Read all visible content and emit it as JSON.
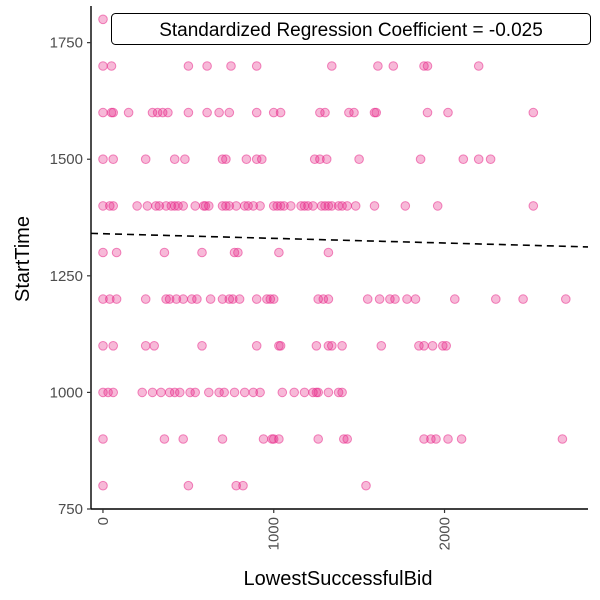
{
  "chart_data": {
    "type": "scatter",
    "title": "",
    "xlabel": "LowestSuccessfulBid",
    "ylabel": "StartTime",
    "xlim": [
      -70,
      2840
    ],
    "ylim": [
      750,
      1820
    ],
    "x_ticks": [
      0,
      1000,
      2000
    ],
    "x_tick_labels": [
      "0",
      "1000",
      "2000"
    ],
    "y_ticks": [
      750,
      1000,
      1250,
      1500,
      1750
    ],
    "y_tick_labels": [
      "750",
      "1000",
      "1250",
      "1500",
      "1750"
    ],
    "grid": false,
    "legend": "none",
    "annotation": "Standardized Regression Coefficient = -0.025",
    "regression_line": {
      "x": [
        -70,
        2840
      ],
      "y": [
        1341,
        1312
      ],
      "style": "dashed"
    },
    "point_color": "#e7298a",
    "point_fill_opacity": 0.33,
    "point_stroke_opacity": 0.55,
    "points": [
      [
        0,
        1800
      ],
      [
        0,
        1700
      ],
      [
        50,
        1700
      ],
      [
        500,
        1700
      ],
      [
        610,
        1700
      ],
      [
        750,
        1700
      ],
      [
        900,
        1700
      ],
      [
        1340,
        1700
      ],
      [
        1610,
        1700
      ],
      [
        1700,
        1700
      ],
      [
        1880,
        1700
      ],
      [
        1900,
        1700
      ],
      [
        2200,
        1700
      ],
      [
        0,
        1600
      ],
      [
        50,
        1600
      ],
      [
        60,
        1600
      ],
      [
        150,
        1600
      ],
      [
        290,
        1600
      ],
      [
        320,
        1600
      ],
      [
        350,
        1600
      ],
      [
        380,
        1600
      ],
      [
        500,
        1600
      ],
      [
        610,
        1600
      ],
      [
        680,
        1600
      ],
      [
        740,
        1600
      ],
      [
        900,
        1600
      ],
      [
        1000,
        1600
      ],
      [
        1040,
        1600
      ],
      [
        1270,
        1600
      ],
      [
        1300,
        1600
      ],
      [
        1440,
        1600
      ],
      [
        1470,
        1600
      ],
      [
        1590,
        1600
      ],
      [
        1600,
        1600
      ],
      [
        1900,
        1600
      ],
      [
        2020,
        1600
      ],
      [
        2520,
        1600
      ],
      [
        0,
        1500
      ],
      [
        60,
        1500
      ],
      [
        250,
        1500
      ],
      [
        420,
        1500
      ],
      [
        480,
        1500
      ],
      [
        700,
        1500
      ],
      [
        720,
        1500
      ],
      [
        840,
        1500
      ],
      [
        900,
        1500
      ],
      [
        930,
        1500
      ],
      [
        1240,
        1500
      ],
      [
        1270,
        1500
      ],
      [
        1310,
        1500
      ],
      [
        1500,
        1500
      ],
      [
        1860,
        1500
      ],
      [
        2110,
        1500
      ],
      [
        2200,
        1500
      ],
      [
        2270,
        1500
      ],
      [
        0,
        1400
      ],
      [
        40,
        1400
      ],
      [
        60,
        1400
      ],
      [
        200,
        1400
      ],
      [
        260,
        1400
      ],
      [
        310,
        1400
      ],
      [
        330,
        1400
      ],
      [
        370,
        1400
      ],
      [
        400,
        1400
      ],
      [
        420,
        1400
      ],
      [
        440,
        1400
      ],
      [
        470,
        1400
      ],
      [
        540,
        1400
      ],
      [
        590,
        1400
      ],
      [
        600,
        1400
      ],
      [
        620,
        1400
      ],
      [
        700,
        1400
      ],
      [
        720,
        1400
      ],
      [
        740,
        1400
      ],
      [
        780,
        1400
      ],
      [
        830,
        1400
      ],
      [
        850,
        1400
      ],
      [
        880,
        1400
      ],
      [
        920,
        1400
      ],
      [
        1000,
        1400
      ],
      [
        1020,
        1400
      ],
      [
        1040,
        1400
      ],
      [
        1060,
        1400
      ],
      [
        1100,
        1400
      ],
      [
        1160,
        1400
      ],
      [
        1180,
        1400
      ],
      [
        1200,
        1400
      ],
      [
        1230,
        1400
      ],
      [
        1280,
        1400
      ],
      [
        1300,
        1400
      ],
      [
        1320,
        1400
      ],
      [
        1340,
        1400
      ],
      [
        1380,
        1400
      ],
      [
        1400,
        1400
      ],
      [
        1430,
        1400
      ],
      [
        1480,
        1400
      ],
      [
        1590,
        1400
      ],
      [
        1770,
        1400
      ],
      [
        1960,
        1400
      ],
      [
        2520,
        1400
      ],
      [
        0,
        1300
      ],
      [
        80,
        1300
      ],
      [
        360,
        1300
      ],
      [
        580,
        1300
      ],
      [
        770,
        1300
      ],
      [
        790,
        1300
      ],
      [
        1030,
        1300
      ],
      [
        1320,
        1300
      ],
      [
        0,
        1200
      ],
      [
        40,
        1200
      ],
      [
        80,
        1200
      ],
      [
        250,
        1200
      ],
      [
        370,
        1200
      ],
      [
        390,
        1200
      ],
      [
        430,
        1200
      ],
      [
        470,
        1200
      ],
      [
        520,
        1200
      ],
      [
        550,
        1200
      ],
      [
        630,
        1200
      ],
      [
        700,
        1200
      ],
      [
        740,
        1200
      ],
      [
        760,
        1200
      ],
      [
        800,
        1200
      ],
      [
        900,
        1200
      ],
      [
        960,
        1200
      ],
      [
        980,
        1200
      ],
      [
        1000,
        1200
      ],
      [
        1260,
        1200
      ],
      [
        1290,
        1200
      ],
      [
        1320,
        1200
      ],
      [
        1550,
        1200
      ],
      [
        1620,
        1200
      ],
      [
        1680,
        1200
      ],
      [
        1710,
        1200
      ],
      [
        1780,
        1200
      ],
      [
        1830,
        1200
      ],
      [
        2060,
        1200
      ],
      [
        2300,
        1200
      ],
      [
        2460,
        1200
      ],
      [
        2710,
        1200
      ],
      [
        0,
        1100
      ],
      [
        60,
        1100
      ],
      [
        250,
        1100
      ],
      [
        300,
        1100
      ],
      [
        580,
        1100
      ],
      [
        900,
        1100
      ],
      [
        1030,
        1100
      ],
      [
        1040,
        1100
      ],
      [
        1250,
        1100
      ],
      [
        1320,
        1100
      ],
      [
        1340,
        1100
      ],
      [
        1400,
        1100
      ],
      [
        1630,
        1100
      ],
      [
        1850,
        1100
      ],
      [
        1880,
        1100
      ],
      [
        1930,
        1100
      ],
      [
        1990,
        1100
      ],
      [
        2010,
        1100
      ],
      [
        0,
        1000
      ],
      [
        30,
        1000
      ],
      [
        60,
        1000
      ],
      [
        230,
        1000
      ],
      [
        290,
        1000
      ],
      [
        340,
        1000
      ],
      [
        390,
        1000
      ],
      [
        420,
        1000
      ],
      [
        450,
        1000
      ],
      [
        510,
        1000
      ],
      [
        540,
        1000
      ],
      [
        620,
        1000
      ],
      [
        680,
        1000
      ],
      [
        710,
        1000
      ],
      [
        770,
        1000
      ],
      [
        830,
        1000
      ],
      [
        880,
        1000
      ],
      [
        920,
        1000
      ],
      [
        1050,
        1000
      ],
      [
        1120,
        1000
      ],
      [
        1180,
        1000
      ],
      [
        1230,
        1000
      ],
      [
        1250,
        1000
      ],
      [
        1260,
        1000
      ],
      [
        1320,
        1000
      ],
      [
        1380,
        1000
      ],
      [
        1400,
        1000
      ],
      [
        0,
        900
      ],
      [
        360,
        900
      ],
      [
        470,
        900
      ],
      [
        700,
        900
      ],
      [
        940,
        900
      ],
      [
        990,
        900
      ],
      [
        1000,
        900
      ],
      [
        1030,
        900
      ],
      [
        1260,
        900
      ],
      [
        1410,
        900
      ],
      [
        1430,
        900
      ],
      [
        1880,
        900
      ],
      [
        1920,
        900
      ],
      [
        1950,
        900
      ],
      [
        2020,
        900
      ],
      [
        2100,
        900
      ],
      [
        2690,
        900
      ],
      [
        0,
        800
      ],
      [
        500,
        800
      ],
      [
        780,
        800
      ],
      [
        820,
        800
      ],
      [
        1540,
        800
      ]
    ]
  }
}
